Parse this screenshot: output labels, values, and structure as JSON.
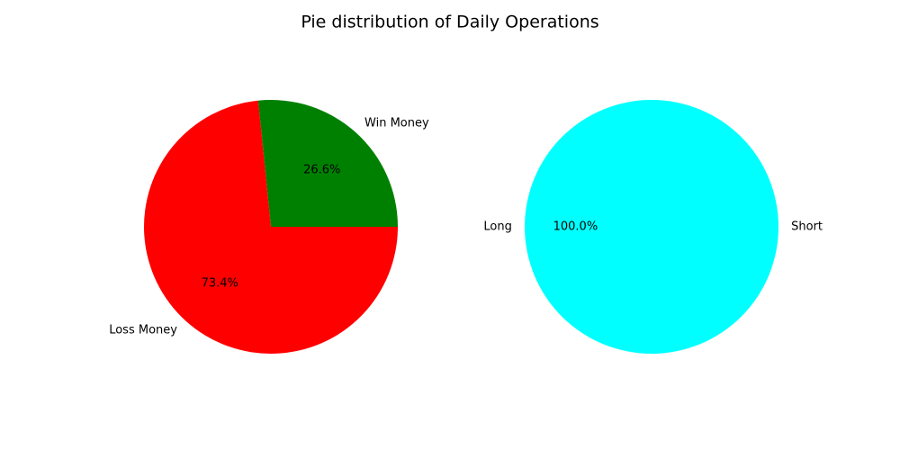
{
  "figure": {
    "title": "Pie distribution of Daily Operations"
  },
  "chart_data": [
    {
      "type": "pie",
      "start_angle_deg": 0,
      "direction": "counterclockwise",
      "slices": [
        {
          "label": "Win Money",
          "value": 26.6,
          "pct_text": "26.6%",
          "color": "#008000"
        },
        {
          "label": "Loss Money",
          "value": 73.4,
          "pct_text": "73.4%",
          "color": "#ff0000"
        }
      ]
    },
    {
      "type": "pie",
      "start_angle_deg": 0,
      "direction": "counterclockwise",
      "slices": [
        {
          "label": "Short",
          "value": 0.0,
          "pct_text": "0.0%",
          "color": "#00ffff"
        },
        {
          "label": "Long",
          "value": 100.0,
          "pct_text": "100.0%",
          "color": "#00ffff"
        }
      ]
    }
  ]
}
